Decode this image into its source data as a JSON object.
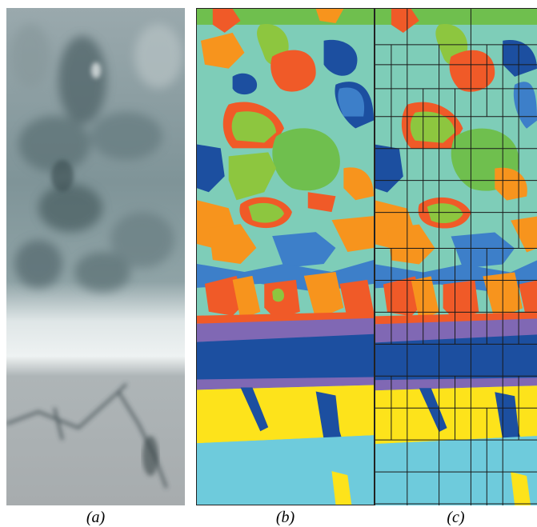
{
  "captions": {
    "a": "(a)",
    "b": "(b)",
    "c": "(c)"
  },
  "panels": [
    {
      "id": "a",
      "content": "grayscale-photo"
    },
    {
      "id": "b",
      "content": "segmentation-map"
    },
    {
      "id": "c",
      "content": "segmentation-map-with-quadtree"
    }
  ],
  "colors": {
    "teal": "#7ecdb8",
    "orange_red": "#f05a28",
    "orange": "#f7941d",
    "green": "#8dc63f",
    "light_green": "#6fbf4e",
    "blue": "#1c4fa0",
    "mid_blue": "#3d7fc9",
    "purple": "#8068b4",
    "yellow": "#fde31b",
    "cyan": "#6ecbdc",
    "light_blue": "#9ed2e6"
  }
}
